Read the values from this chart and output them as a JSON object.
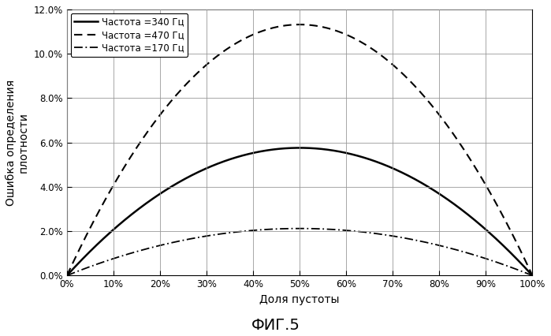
{
  "title": "ФИГ.5",
  "xlabel": "Доля пустоты",
  "ylabel": "Ошибка определения\nплотности",
  "xlim": [
    0.0,
    1.0
  ],
  "ylim": [
    0.0,
    0.12
  ],
  "xticks": [
    0.0,
    0.1,
    0.2,
    0.3,
    0.4,
    0.5,
    0.6,
    0.7,
    0.8,
    0.9,
    1.0
  ],
  "yticks": [
    0.0,
    0.02,
    0.04,
    0.06,
    0.08,
    0.1,
    0.12
  ],
  "xtick_labels": [
    "0%",
    "10%",
    "20%",
    "30%",
    "40%",
    "50%",
    "60%",
    "70%",
    "80%",
    "90%",
    "100%"
  ],
  "ytick_labels": [
    "0.0%",
    "2.0%",
    "4.0%",
    "6.0%",
    "8.0%",
    "10.0%",
    "12.0%"
  ],
  "curve_340_peak": 0.057,
  "curve_340_peak_x": 0.55,
  "curve_470_peak": 0.113,
  "curve_470_peak_x": 0.52,
  "curve_170_peak": 0.021,
  "curve_170_peak_x": 0.55,
  "legend": [
    {
      "label": "Частота =340 Гц",
      "linestyle": "solid",
      "color": "#000000",
      "lw": 1.8
    },
    {
      "label": "Частота =470 Гц",
      "linestyle": "dashed",
      "color": "#000000",
      "lw": 1.5
    },
    {
      "label": "Частота =170 Гц",
      "linestyle": "dashdot",
      "color": "#000000",
      "lw": 1.3
    }
  ],
  "background_color": "#ffffff",
  "grid_color": "#999999",
  "xlabel_fontsize": 10,
  "ylabel_fontsize": 10,
  "tick_fontsize": 8.5,
  "legend_fontsize": 8.5,
  "title_fontsize": 14,
  "title_fontweight": "normal"
}
